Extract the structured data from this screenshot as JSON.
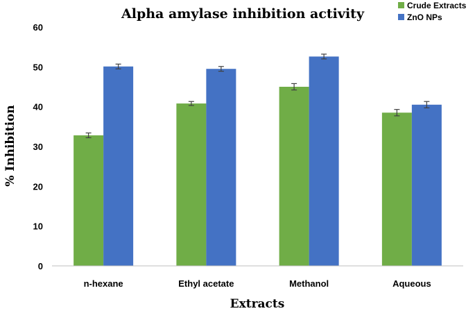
{
  "chart_data": {
    "type": "bar",
    "title": "Alpha amylase inhibition activity",
    "xlabel": "Extracts",
    "ylabel": "% Inhibition",
    "categories": [
      "n-hexane",
      "Ethyl acetate",
      "Methanol",
      "Aqueous"
    ],
    "series": [
      {
        "name": "Crude Extracts",
        "color": "#70ad47",
        "values": [
          32.8,
          40.8,
          45.0,
          38.5
        ],
        "errors": [
          0.6,
          0.5,
          0.8,
          0.8
        ]
      },
      {
        "name": "ZnO NPs",
        "color": "#4472c4",
        "values": [
          50.1,
          49.5,
          52.6,
          40.5
        ],
        "errors": [
          0.6,
          0.6,
          0.6,
          0.8
        ]
      }
    ],
    "ylim": [
      0,
      60
    ],
    "yticks": [
      0,
      10,
      20,
      30,
      40,
      50,
      60
    ],
    "grid": false,
    "legend": "top-right"
  }
}
